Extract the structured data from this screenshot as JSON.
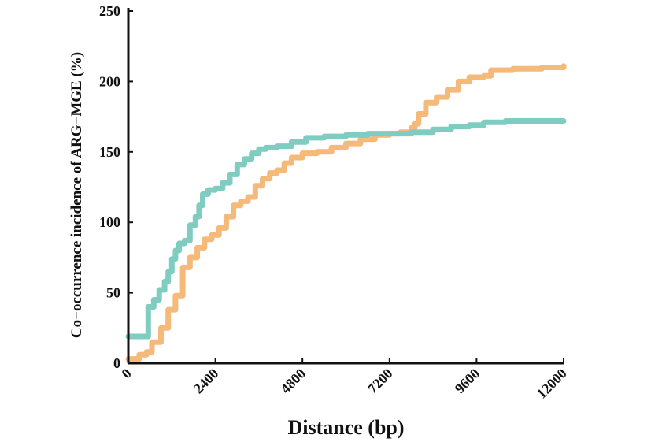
{
  "chart_data": {
    "type": "line",
    "title": "",
    "xlabel": "Distance (bp)",
    "ylabel": "Co−occurrence incidence of ARG−MGE (%)",
    "xlim": [
      0,
      12000
    ],
    "ylim": [
      0,
      250
    ],
    "xticks": [
      0,
      2400,
      4800,
      7200,
      9600,
      12000
    ],
    "yticks": [
      0,
      50,
      100,
      150,
      200,
      250
    ],
    "xtick_labels": [
      "0",
      "2400",
      "4800",
      "7200",
      "9600",
      "12000"
    ],
    "ytick_labels": [
      "0",
      "50",
      "100",
      "150",
      "200",
      "250"
    ],
    "grid": false,
    "legend": "none",
    "series": [
      {
        "color": "#f5b97a",
        "points": [
          [
            0,
            3
          ],
          [
            300,
            6
          ],
          [
            500,
            8
          ],
          [
            650,
            15
          ],
          [
            900,
            25
          ],
          [
            1100,
            38
          ],
          [
            1300,
            48
          ],
          [
            1500,
            68
          ],
          [
            1700,
            75
          ],
          [
            1900,
            82
          ],
          [
            2100,
            88
          ],
          [
            2300,
            91
          ],
          [
            2500,
            96
          ],
          [
            2700,
            104
          ],
          [
            2900,
            112
          ],
          [
            3100,
            115
          ],
          [
            3300,
            118
          ],
          [
            3500,
            126
          ],
          [
            3700,
            131
          ],
          [
            3900,
            135
          ],
          [
            4100,
            137
          ],
          [
            4300,
            142
          ],
          [
            4500,
            146
          ],
          [
            4800,
            149
          ],
          [
            5200,
            150
          ],
          [
            5600,
            153
          ],
          [
            6000,
            156
          ],
          [
            6400,
            159
          ],
          [
            6800,
            162
          ],
          [
            7200,
            163
          ],
          [
            7500,
            164
          ],
          [
            7800,
            167
          ],
          [
            7900,
            170
          ],
          [
            8000,
            177
          ],
          [
            8200,
            185
          ],
          [
            8500,
            189
          ],
          [
            8800,
            194
          ],
          [
            9100,
            200
          ],
          [
            9400,
            203
          ],
          [
            9800,
            204
          ],
          [
            10000,
            208
          ],
          [
            10600,
            209
          ],
          [
            11400,
            210
          ],
          [
            12000,
            211
          ]
        ]
      },
      {
        "color": "#7ecdc0",
        "points": [
          [
            0,
            19
          ],
          [
            450,
            19
          ],
          [
            500,
            19
          ],
          [
            550,
            40
          ],
          [
            700,
            45
          ],
          [
            850,
            52
          ],
          [
            1000,
            58
          ],
          [
            1100,
            65
          ],
          [
            1200,
            74
          ],
          [
            1300,
            80
          ],
          [
            1400,
            85
          ],
          [
            1550,
            87
          ],
          [
            1700,
            98
          ],
          [
            1850,
            104
          ],
          [
            1950,
            112
          ],
          [
            2050,
            120
          ],
          [
            2200,
            123
          ],
          [
            2400,
            124
          ],
          [
            2600,
            128
          ],
          [
            2800,
            134
          ],
          [
            3000,
            141
          ],
          [
            3200,
            145
          ],
          [
            3400,
            149
          ],
          [
            3600,
            152
          ],
          [
            3800,
            153
          ],
          [
            4100,
            154
          ],
          [
            4500,
            157
          ],
          [
            4900,
            160
          ],
          [
            5400,
            161
          ],
          [
            6000,
            162
          ],
          [
            6600,
            163
          ],
          [
            7200,
            163
          ],
          [
            7800,
            164
          ],
          [
            8400,
            166
          ],
          [
            8900,
            168
          ],
          [
            9400,
            169
          ],
          [
            9800,
            171
          ],
          [
            10400,
            172
          ],
          [
            11200,
            172
          ],
          [
            12000,
            172
          ]
        ]
      }
    ]
  }
}
